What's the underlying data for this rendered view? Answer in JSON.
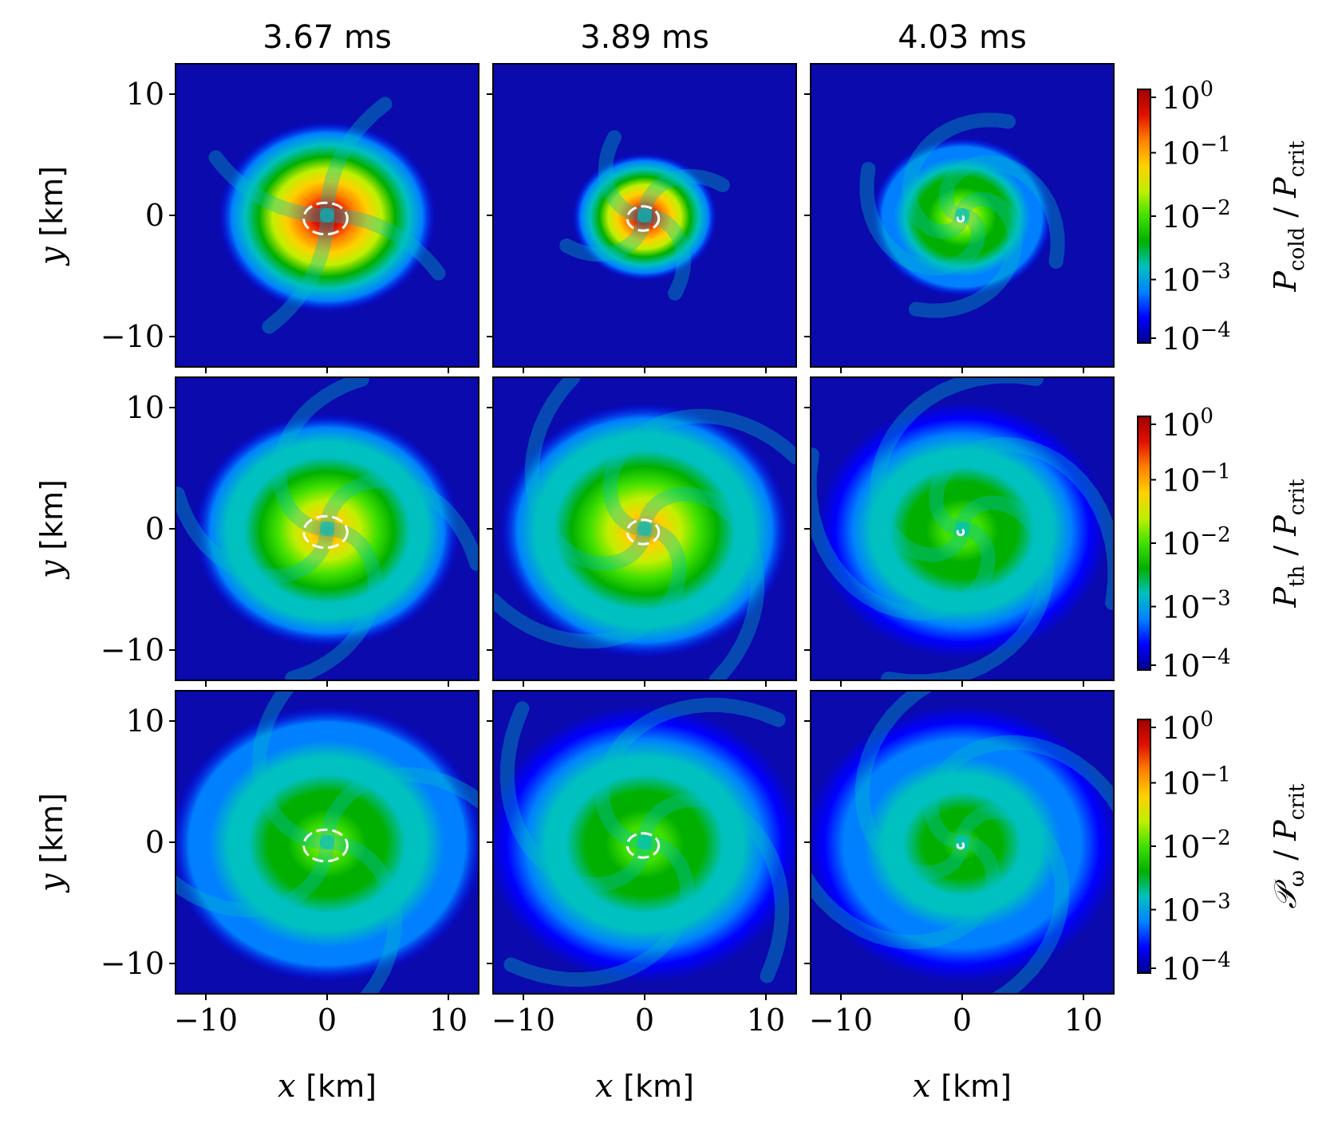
{
  "figure": {
    "column_titles": [
      "3.67 ms",
      "3.89 ms",
      "4.03 ms"
    ]
  },
  "colors": {
    "background_field": "#0a0aad",
    "contour": "#ffffff",
    "axis": "#000000"
  },
  "colormap_stops": [
    "#00008c",
    "#0000ff",
    "#0080ff",
    "#00c0c0",
    "#00b000",
    "#40e000",
    "#c0f000",
    "#ffd000",
    "#ff8000",
    "#e01000",
    "#a00000"
  ],
  "chart_data": {
    "type": "heatmap",
    "layout": "3x3 grid of 2D slices",
    "xlabel": {
      "var": "x",
      "unit": "[km]"
    },
    "ylabel": {
      "var": "y",
      "unit": "[km]"
    },
    "xlim": [
      -12.5,
      12.5
    ],
    "ylim": [
      -12.5,
      12.5
    ],
    "xticks": [
      -10,
      0,
      10
    ],
    "yticks": [
      -10,
      0,
      10
    ],
    "tick_labels": {
      "-10": "−10",
      "0": "0",
      "10": "10"
    },
    "columns": [
      {
        "title": "3.67 ms",
        "time_ms": 3.67
      },
      {
        "title": "3.89 ms",
        "time_ms": 3.89
      },
      {
        "title": "4.03 ms",
        "time_ms": 4.03
      }
    ],
    "rows": [
      {
        "quantity": "P_cold / P_crit",
        "colorbar_label": {
          "main": "P",
          "sub": "cold",
          "sep": " / ",
          "main2": "P",
          "sub2": "crit"
        },
        "colorbar": {
          "scale": "log",
          "range": [
            0.0001,
            1
          ],
          "ticks": [
            {
              "base": "10",
              "exp": "0"
            },
            {
              "base": "10",
              "exp": "−1"
            },
            {
              "base": "10",
              "exp": "−2"
            },
            {
              "base": "10",
              "exp": "−3"
            },
            {
              "base": "10",
              "exp": "−4"
            }
          ]
        },
        "panels": [
          {
            "log_peak": 0.0,
            "radius_km": 9.0,
            "swirl": 0.08,
            "contour_km": [
              1.8,
              1.3
            ]
          },
          {
            "log_peak": 0.0,
            "radius_km": 6.0,
            "swirl": 0.2,
            "contour_km": [
              1.3,
              1.0
            ]
          },
          {
            "log_peak": -1.5,
            "radius_km": 7.5,
            "swirl": 0.6,
            "contour_km": [
              0.25,
              0.25
            ]
          }
        ]
      },
      {
        "quantity": "P_th / P_crit",
        "colorbar_label": {
          "main": "P",
          "sub": "th",
          "sep": " / ",
          "main2": "P",
          "sub2": "crit"
        },
        "colorbar": {
          "scale": "log",
          "range": [
            0.0001,
            1
          ],
          "ticks": [
            {
              "base": "10",
              "exp": "0"
            },
            {
              "base": "10",
              "exp": "−1"
            },
            {
              "base": "10",
              "exp": "−2"
            },
            {
              "base": "10",
              "exp": "−3"
            },
            {
              "base": "10",
              "exp": "−4"
            }
          ]
        },
        "panels": [
          {
            "log_peak": -1.0,
            "radius_km": 11.0,
            "swirl": 0.3,
            "contour_km": [
              1.8,
              1.3
            ]
          },
          {
            "log_peak": -1.0,
            "radius_km": 12.0,
            "swirl": 0.45,
            "contour_km": [
              1.3,
              1.0
            ]
          },
          {
            "log_peak": -2.0,
            "radius_km": 12.0,
            "swirl": 0.6,
            "contour_km": [
              0.25,
              0.25
            ]
          }
        ]
      },
      {
        "quantity": "P_omega / P_crit",
        "colorbar_label": {
          "main": "𝒫",
          "sub": "ω",
          "sep": " / ",
          "main2": "P",
          "sub2": "crit"
        },
        "colorbar": {
          "scale": "log",
          "range": [
            0.0001,
            1
          ],
          "ticks": [
            {
              "base": "10",
              "exp": "0"
            },
            {
              "base": "10",
              "exp": "−1"
            },
            {
              "base": "10",
              "exp": "−2"
            },
            {
              "base": "10",
              "exp": "−3"
            },
            {
              "base": "10",
              "exp": "−4"
            }
          ]
        },
        "panels": [
          {
            "log_peak": -1.8,
            "radius_km": 13.0,
            "swirl": 0.25,
            "contour_km": [
              1.8,
              1.3
            ]
          },
          {
            "log_peak": -2.0,
            "radius_km": 13.0,
            "swirl": 0.4,
            "contour_km": [
              1.3,
              1.0
            ]
          },
          {
            "log_peak": -2.2,
            "radius_km": 13.0,
            "swirl": 0.55,
            "contour_km": [
              0.25,
              0.25
            ]
          }
        ]
      }
    ]
  }
}
